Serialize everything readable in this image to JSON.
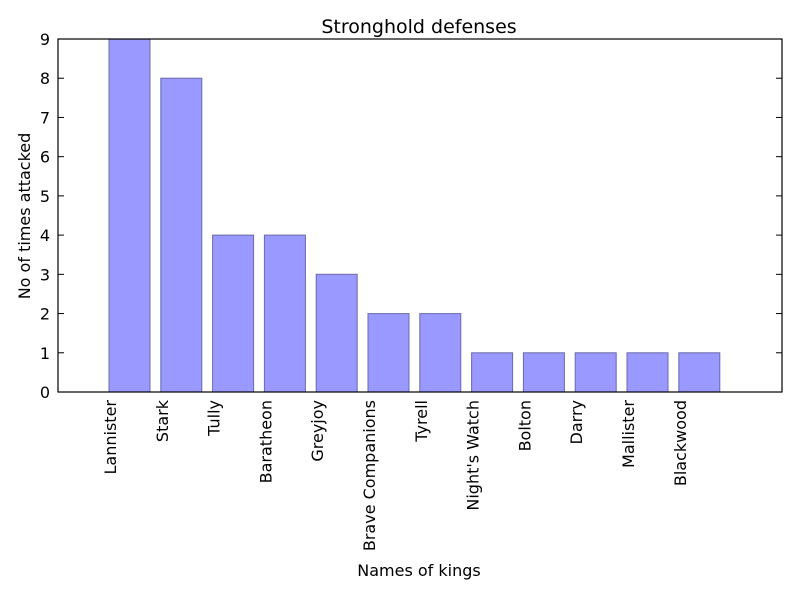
{
  "chart_data": {
    "type": "bar",
    "title": "Stronghold defenses",
    "xlabel": "Names of kings",
    "ylabel": "No of times attacked",
    "categories": [
      "Lannister",
      "Stark",
      "Tully",
      "Baratheon",
      "Greyjoy",
      "Brave Companions",
      "Tyrell",
      "Night's Watch",
      "Bolton",
      "Darry",
      "Mallister",
      "Blackwood"
    ],
    "values": [
      9,
      8,
      4,
      4,
      3,
      2,
      2,
      1,
      1,
      1,
      1,
      1
    ],
    "ylim": [
      0,
      9
    ],
    "yticks": [
      "0",
      "1",
      "2",
      "3",
      "4",
      "5",
      "6",
      "7",
      "8",
      "9"
    ],
    "grid": false,
    "bar_color": "#9999ff",
    "bar_edge_color": "#6a6aaa"
  }
}
